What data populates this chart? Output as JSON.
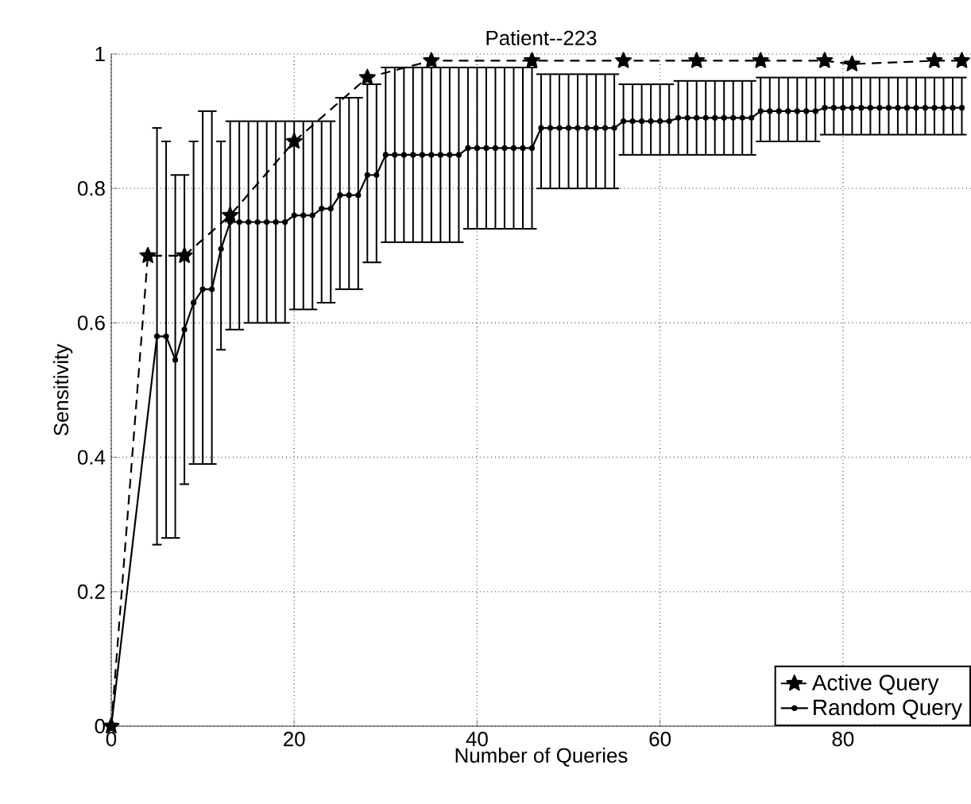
{
  "chart_data": {
    "type": "line",
    "title": "Patient--223",
    "xlabel": "Number of Queries",
    "ylabel": "Sensitivity",
    "xlim": [
      0,
      94
    ],
    "ylim": [
      0,
      1
    ],
    "xticks": [
      0,
      20,
      40,
      60,
      80
    ],
    "yticks": [
      0,
      0.2,
      0.4,
      0.6,
      0.8,
      1
    ],
    "grid": true,
    "legend": "bottom right",
    "series": [
      {
        "name": "Active Query",
        "color": "#000000",
        "marker": "star",
        "line_style": "dashed",
        "x": [
          0,
          4,
          8,
          13,
          20,
          28,
          35,
          46,
          56,
          64,
          71,
          78,
          81,
          90,
          93
        ],
        "values": [
          0,
          0.7,
          0.7,
          0.76,
          0.87,
          0.965,
          0.99,
          0.99,
          0.99,
          0.99,
          0.99,
          0.99,
          0.985,
          0.99,
          0.99
        ]
      },
      {
        "name": "Random Query",
        "color": "#000000",
        "marker": "circle",
        "line_style": "solid",
        "x": [
          0,
          5,
          6,
          7,
          8,
          9,
          10,
          11,
          12,
          13,
          14,
          15,
          16,
          17,
          18,
          19,
          20,
          21,
          22,
          23,
          24,
          25,
          26,
          27,
          28,
          29,
          30,
          31,
          32,
          33,
          34,
          35,
          36,
          37,
          38,
          39,
          40,
          41,
          42,
          43,
          44,
          45,
          46,
          47,
          48,
          49,
          50,
          51,
          52,
          53,
          54,
          55,
          56,
          57,
          58,
          59,
          60,
          61,
          62,
          63,
          64,
          65,
          66,
          67,
          68,
          69,
          70,
          71,
          72,
          73,
          74,
          75,
          76,
          77,
          78,
          79,
          80,
          81,
          82,
          83,
          84,
          85,
          86,
          87,
          88,
          89,
          90,
          91,
          92,
          93
        ],
        "values": [
          0,
          0.58,
          0.58,
          0.545,
          0.59,
          0.63,
          0.65,
          0.65,
          0.71,
          0.75,
          0.75,
          0.75,
          0.75,
          0.75,
          0.75,
          0.75,
          0.76,
          0.76,
          0.76,
          0.77,
          0.77,
          0.79,
          0.79,
          0.79,
          0.82,
          0.82,
          0.85,
          0.85,
          0.85,
          0.85,
          0.85,
          0.85,
          0.85,
          0.85,
          0.85,
          0.86,
          0.86,
          0.86,
          0.86,
          0.86,
          0.86,
          0.86,
          0.86,
          0.89,
          0.89,
          0.89,
          0.89,
          0.89,
          0.89,
          0.89,
          0.89,
          0.89,
          0.9,
          0.9,
          0.9,
          0.9,
          0.9,
          0.9,
          0.905,
          0.905,
          0.905,
          0.905,
          0.905,
          0.905,
          0.905,
          0.905,
          0.905,
          0.915,
          0.915,
          0.915,
          0.915,
          0.915,
          0.915,
          0.915,
          0.92,
          0.92,
          0.92,
          0.92,
          0.92,
          0.92,
          0.92,
          0.92,
          0.92,
          0.92,
          0.92,
          0.92,
          0.92,
          0.92,
          0.92,
          0.92
        ],
        "errors": [
          null,
          [
            0.27,
            0.89
          ],
          [
            0.28,
            0.87
          ],
          [
            0.28,
            0.82
          ],
          [
            0.36,
            0.82
          ],
          [
            0.39,
            0.87
          ],
          [
            0.39,
            0.915
          ],
          [
            0.39,
            0.915
          ],
          [
            0.56,
            0.87
          ],
          [
            0.59,
            0.9
          ],
          [
            0.59,
            0.9
          ],
          [
            0.6,
            0.9
          ],
          [
            0.6,
            0.9
          ],
          [
            0.6,
            0.9
          ],
          [
            0.6,
            0.9
          ],
          [
            0.6,
            0.9
          ],
          [
            0.62,
            0.9
          ],
          [
            0.62,
            0.9
          ],
          [
            0.62,
            0.9
          ],
          [
            0.63,
            0.9
          ],
          [
            0.63,
            0.9
          ],
          [
            0.65,
            0.935
          ],
          [
            0.65,
            0.935
          ],
          [
            0.65,
            0.935
          ],
          [
            0.69,
            0.955
          ],
          [
            0.69,
            0.955
          ],
          [
            0.72,
            0.98
          ],
          [
            0.72,
            0.98
          ],
          [
            0.72,
            0.98
          ],
          [
            0.72,
            0.98
          ],
          [
            0.72,
            0.98
          ],
          [
            0.72,
            0.98
          ],
          [
            0.72,
            0.98
          ],
          [
            0.72,
            0.98
          ],
          [
            0.72,
            0.98
          ],
          [
            0.74,
            0.98
          ],
          [
            0.74,
            0.98
          ],
          [
            0.74,
            0.98
          ],
          [
            0.74,
            0.98
          ],
          [
            0.74,
            0.98
          ],
          [
            0.74,
            0.98
          ],
          [
            0.74,
            0.98
          ],
          [
            0.74,
            0.98
          ],
          [
            0.8,
            0.97
          ],
          [
            0.8,
            0.97
          ],
          [
            0.8,
            0.97
          ],
          [
            0.8,
            0.97
          ],
          [
            0.8,
            0.97
          ],
          [
            0.8,
            0.97
          ],
          [
            0.8,
            0.97
          ],
          [
            0.8,
            0.97
          ],
          [
            0.8,
            0.97
          ],
          [
            0.85,
            0.955
          ],
          [
            0.85,
            0.955
          ],
          [
            0.85,
            0.955
          ],
          [
            0.85,
            0.955
          ],
          [
            0.85,
            0.955
          ],
          [
            0.85,
            0.955
          ],
          [
            0.85,
            0.96
          ],
          [
            0.85,
            0.96
          ],
          [
            0.85,
            0.96
          ],
          [
            0.85,
            0.96
          ],
          [
            0.85,
            0.96
          ],
          [
            0.85,
            0.96
          ],
          [
            0.85,
            0.96
          ],
          [
            0.85,
            0.96
          ],
          [
            0.85,
            0.96
          ],
          [
            0.87,
            0.965
          ],
          [
            0.87,
            0.965
          ],
          [
            0.87,
            0.965
          ],
          [
            0.87,
            0.965
          ],
          [
            0.87,
            0.965
          ],
          [
            0.87,
            0.965
          ],
          [
            0.87,
            0.965
          ],
          [
            0.88,
            0.965
          ],
          [
            0.88,
            0.965
          ],
          [
            0.88,
            0.965
          ],
          [
            0.88,
            0.965
          ],
          [
            0.88,
            0.965
          ],
          [
            0.88,
            0.965
          ],
          [
            0.88,
            0.965
          ],
          [
            0.88,
            0.965
          ],
          [
            0.88,
            0.965
          ],
          [
            0.88,
            0.965
          ],
          [
            0.88,
            0.965
          ],
          [
            0.88,
            0.965
          ],
          [
            0.88,
            0.965
          ],
          [
            0.88,
            0.965
          ],
          [
            0.88,
            0.965
          ],
          [
            0.88,
            0.965
          ]
        ]
      }
    ]
  }
}
